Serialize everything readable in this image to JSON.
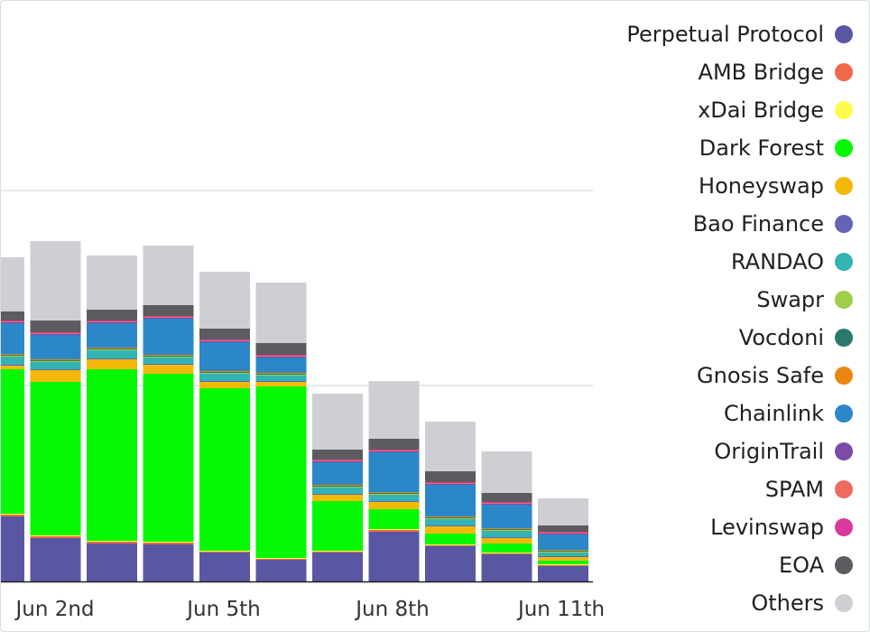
{
  "chart_data": {
    "type": "bar",
    "stacked": true,
    "grid": "horizontal",
    "legend_position": "right",
    "x_tick_labels": [
      "Jun 2nd",
      "Jun 5th",
      "Jun 8th",
      "Jun 11th"
    ],
    "categories": [
      "Jun 1st",
      "Jun 2nd",
      "Jun 3rd",
      "Jun 4th",
      "Jun 5th",
      "Jun 6th",
      "Jun 7th",
      "Jun 8th",
      "Jun 9th",
      "Jun 10th",
      "Jun 11th"
    ],
    "series": [
      {
        "name": "Perpetual Protocol",
        "color": "#5a57a2",
        "values": [
          72,
          48,
          42,
          41,
          32,
          24,
          32,
          55,
          39,
          30,
          17
        ]
      },
      {
        "name": "AMB Bridge",
        "color": "#f2684a",
        "values": [
          2,
          2,
          2,
          2,
          1,
          1,
          1,
          2,
          1,
          1,
          1
        ]
      },
      {
        "name": "xDai Bridge",
        "color": "#fffb4d",
        "values": [
          1,
          1,
          1,
          1,
          1,
          1,
          1,
          1,
          1,
          1,
          1
        ]
      },
      {
        "name": "Dark Forest",
        "color": "#05f905",
        "values": [
          160,
          170,
          190,
          186,
          180,
          190,
          55,
          22,
          12,
          10,
          4
        ]
      },
      {
        "name": "Honeyswap",
        "color": "#f3b909",
        "values": [
          4,
          13,
          11,
          10,
          7,
          5,
          7,
          8,
          8,
          6,
          4
        ]
      },
      {
        "name": "Bao Finance",
        "color": "#6364b8",
        "values": [
          1,
          1,
          1,
          1,
          1,
          1,
          1,
          1,
          1,
          1,
          1
        ]
      },
      {
        "name": "RANDAO",
        "color": "#33b3b3",
        "values": [
          9,
          8,
          9,
          7,
          8,
          6,
          7,
          7,
          7,
          7,
          4
        ]
      },
      {
        "name": "Swapr",
        "color": "#9fce4a",
        "values": [
          1,
          1,
          1,
          1,
          1,
          1,
          1,
          1,
          1,
          1,
          1
        ]
      },
      {
        "name": "Vocdoni",
        "color": "#2a7a6c",
        "values": [
          1,
          1,
          1,
          1,
          1,
          1,
          1,
          1,
          1,
          1,
          1
        ]
      },
      {
        "name": "Gnosis Safe",
        "color": "#e9860f",
        "values": [
          1,
          1,
          1,
          1,
          1,
          1,
          1,
          1,
          1,
          1,
          1
        ]
      },
      {
        "name": "Chainlink",
        "color": "#2c87c8",
        "values": [
          34,
          27,
          27,
          40,
          32,
          17,
          25,
          44,
          35,
          26,
          17
        ]
      },
      {
        "name": "OriginTrail",
        "color": "#7c4ba8",
        "values": [
          1,
          1,
          1,
          1,
          1,
          1,
          1,
          1,
          1,
          1,
          1
        ]
      },
      {
        "name": "SPAM",
        "color": "#ee6b5e",
        "values": [
          1,
          1,
          1,
          1,
          1,
          1,
          1,
          1,
          1,
          1,
          1
        ]
      },
      {
        "name": "Levinswap",
        "color": "#d83a9d",
        "values": [
          1,
          1,
          1,
          1,
          1,
          1,
          1,
          1,
          1,
          1,
          1
        ]
      },
      {
        "name": "EOA",
        "color": "#5c5c60",
        "values": [
          10,
          13,
          12,
          12,
          12,
          13,
          11,
          12,
          12,
          10,
          7
        ]
      },
      {
        "name": "Others",
        "color": "#cfced3",
        "values": [
          60,
          88,
          60,
          66,
          63,
          67,
          62,
          64,
          55,
          46,
          30
        ]
      }
    ]
  }
}
